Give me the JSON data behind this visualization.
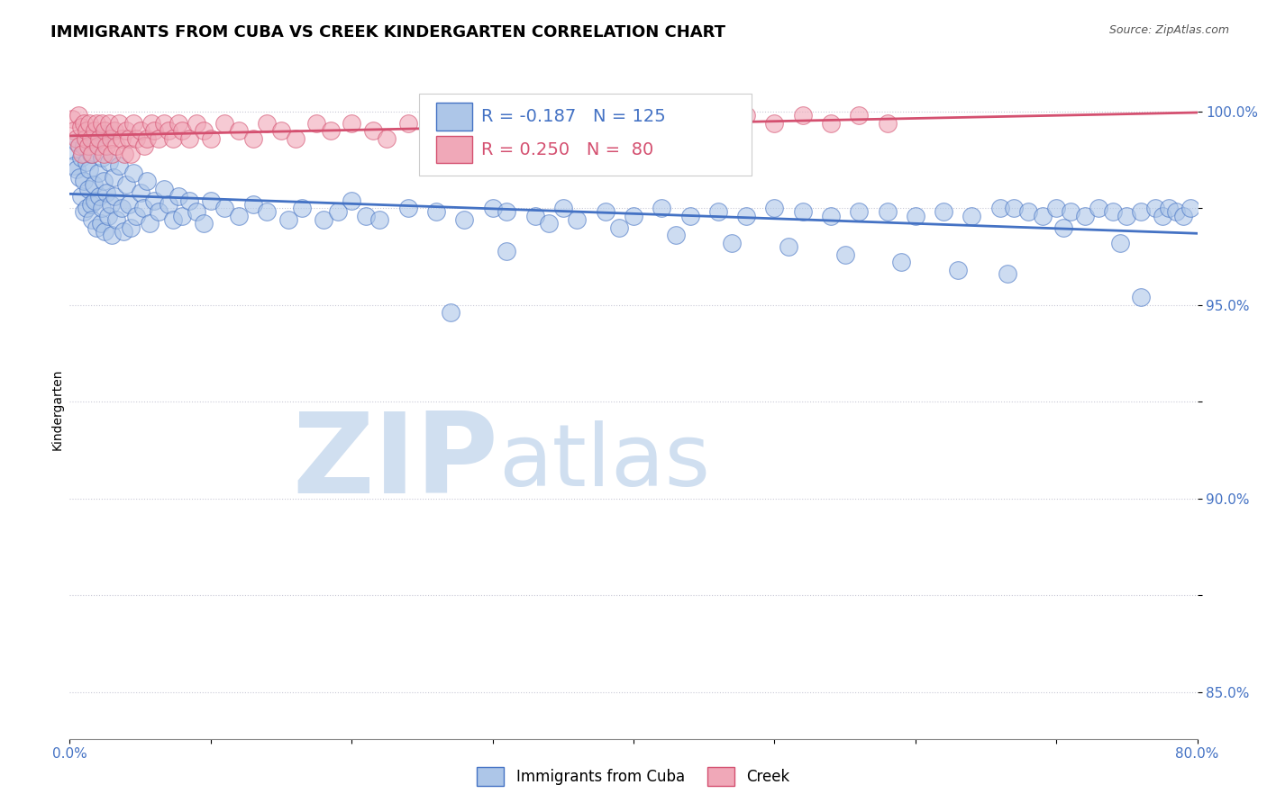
{
  "title": "IMMIGRANTS FROM CUBA VS CREEK KINDERGARTEN CORRELATION CHART",
  "source": "Source: ZipAtlas.com",
  "ylabel": "Kindergarten",
  "legend_label_blue": "Immigrants from Cuba",
  "legend_label_pink": "Creek",
  "R_blue": -0.187,
  "N_blue": 125,
  "R_pink": 0.25,
  "N_pink": 80,
  "xlim": [
    0.0,
    0.8
  ],
  "ylim": [
    0.838,
    1.008
  ],
  "x_tick_labels": [
    "0.0%",
    "",
    "",
    "",
    "",
    "",
    "",
    "",
    "80.0%"
  ],
  "x_tick_vals": [
    0.0,
    0.1,
    0.2,
    0.3,
    0.4,
    0.5,
    0.6,
    0.7,
    0.8
  ],
  "y_tick_labels": [
    "85.0%",
    "",
    "90.0%",
    "",
    "95.0%",
    "",
    "100.0%"
  ],
  "y_tick_vals": [
    0.85,
    0.875,
    0.9,
    0.925,
    0.95,
    0.975,
    1.0
  ],
  "color_blue": "#adc6e8",
  "color_pink": "#f0a8b8",
  "line_color_blue": "#4472c4",
  "line_color_pink": "#d45070",
  "watermark_zip": "ZIP",
  "watermark_atlas": "atlas",
  "watermark_color": "#d0dff0",
  "background_color": "#ffffff",
  "title_fontsize": 13,
  "axis_label_fontsize": 10,
  "tick_fontsize": 11,
  "legend_fontsize": 14,
  "blue_scatter_x": [
    0.002,
    0.003,
    0.005,
    0.005,
    0.007,
    0.008,
    0.008,
    0.01,
    0.01,
    0.01,
    0.012,
    0.012,
    0.013,
    0.014,
    0.015,
    0.015,
    0.016,
    0.017,
    0.018,
    0.018,
    0.019,
    0.02,
    0.02,
    0.021,
    0.022,
    0.023,
    0.023,
    0.024,
    0.025,
    0.025,
    0.026,
    0.027,
    0.028,
    0.029,
    0.03,
    0.031,
    0.032,
    0.033,
    0.035,
    0.037,
    0.038,
    0.04,
    0.042,
    0.043,
    0.045,
    0.047,
    0.05,
    0.052,
    0.055,
    0.057,
    0.06,
    0.063,
    0.067,
    0.07,
    0.073,
    0.077,
    0.08,
    0.085,
    0.09,
    0.095,
    0.1,
    0.11,
    0.12,
    0.13,
    0.14,
    0.155,
    0.165,
    0.18,
    0.19,
    0.2,
    0.21,
    0.22,
    0.24,
    0.26,
    0.28,
    0.3,
    0.31,
    0.33,
    0.35,
    0.36,
    0.38,
    0.4,
    0.42,
    0.44,
    0.46,
    0.48,
    0.5,
    0.52,
    0.54,
    0.56,
    0.58,
    0.6,
    0.62,
    0.64,
    0.66,
    0.67,
    0.68,
    0.69,
    0.7,
    0.71,
    0.72,
    0.73,
    0.74,
    0.75,
    0.76,
    0.77,
    0.775,
    0.78,
    0.785,
    0.79,
    0.795,
    0.34,
    0.39,
    0.43,
    0.47,
    0.51,
    0.55,
    0.59,
    0.63,
    0.665,
    0.705,
    0.745,
    0.76,
    0.31,
    0.27
  ],
  "blue_scatter_y": [
    0.99,
    0.986,
    0.985,
    0.992,
    0.983,
    0.988,
    0.978,
    0.991,
    0.982,
    0.974,
    0.987,
    0.975,
    0.98,
    0.985,
    0.976,
    0.989,
    0.972,
    0.981,
    0.977,
    0.992,
    0.97,
    0.984,
    0.993,
    0.978,
    0.971,
    0.988,
    0.975,
    0.982,
    0.969,
    0.994,
    0.979,
    0.973,
    0.987,
    0.976,
    0.968,
    0.983,
    0.978,
    0.972,
    0.986,
    0.975,
    0.969,
    0.981,
    0.976,
    0.97,
    0.984,
    0.973,
    0.979,
    0.975,
    0.982,
    0.971,
    0.977,
    0.974,
    0.98,
    0.976,
    0.972,
    0.978,
    0.973,
    0.977,
    0.974,
    0.971,
    0.977,
    0.975,
    0.973,
    0.976,
    0.974,
    0.972,
    0.975,
    0.972,
    0.974,
    0.977,
    0.973,
    0.972,
    0.975,
    0.974,
    0.972,
    0.975,
    0.974,
    0.973,
    0.975,
    0.972,
    0.974,
    0.973,
    0.975,
    0.973,
    0.974,
    0.973,
    0.975,
    0.974,
    0.973,
    0.974,
    0.974,
    0.973,
    0.974,
    0.973,
    0.975,
    0.975,
    0.974,
    0.973,
    0.975,
    0.974,
    0.973,
    0.975,
    0.974,
    0.973,
    0.974,
    0.975,
    0.973,
    0.975,
    0.974,
    0.973,
    0.975,
    0.971,
    0.97,
    0.968,
    0.966,
    0.965,
    0.963,
    0.961,
    0.959,
    0.958,
    0.97,
    0.966,
    0.952,
    0.964,
    0.948
  ],
  "pink_scatter_x": [
    0.002,
    0.003,
    0.005,
    0.006,
    0.007,
    0.008,
    0.009,
    0.01,
    0.011,
    0.012,
    0.013,
    0.014,
    0.015,
    0.016,
    0.018,
    0.019,
    0.02,
    0.021,
    0.023,
    0.024,
    0.025,
    0.026,
    0.028,
    0.029,
    0.03,
    0.032,
    0.033,
    0.035,
    0.037,
    0.039,
    0.04,
    0.042,
    0.043,
    0.045,
    0.047,
    0.05,
    0.053,
    0.055,
    0.058,
    0.06,
    0.063,
    0.067,
    0.07,
    0.073,
    0.077,
    0.08,
    0.085,
    0.09,
    0.095,
    0.1,
    0.11,
    0.12,
    0.13,
    0.14,
    0.15,
    0.16,
    0.175,
    0.185,
    0.2,
    0.215,
    0.225,
    0.24,
    0.255,
    0.27,
    0.285,
    0.3,
    0.32,
    0.34,
    0.36,
    0.38,
    0.4,
    0.42,
    0.44,
    0.46,
    0.48,
    0.5,
    0.52,
    0.54,
    0.56,
    0.58
  ],
  "pink_scatter_y": [
    0.998,
    0.995,
    0.993,
    0.999,
    0.991,
    0.996,
    0.989,
    0.997,
    0.993,
    0.995,
    0.991,
    0.997,
    0.993,
    0.989,
    0.995,
    0.997,
    0.991,
    0.993,
    0.997,
    0.989,
    0.995,
    0.991,
    0.997,
    0.993,
    0.989,
    0.995,
    0.991,
    0.997,
    0.993,
    0.989,
    0.995,
    0.993,
    0.989,
    0.997,
    0.993,
    0.995,
    0.991,
    0.993,
    0.997,
    0.995,
    0.993,
    0.997,
    0.995,
    0.993,
    0.997,
    0.995,
    0.993,
    0.997,
    0.995,
    0.993,
    0.997,
    0.995,
    0.993,
    0.997,
    0.995,
    0.993,
    0.997,
    0.995,
    0.997,
    0.995,
    0.993,
    0.997,
    0.995,
    0.997,
    0.995,
    0.997,
    0.995,
    0.997,
    0.995,
    0.997,
    0.995,
    0.997,
    0.995,
    0.997,
    0.999,
    0.997,
    0.999,
    0.997,
    0.999,
    0.997
  ]
}
